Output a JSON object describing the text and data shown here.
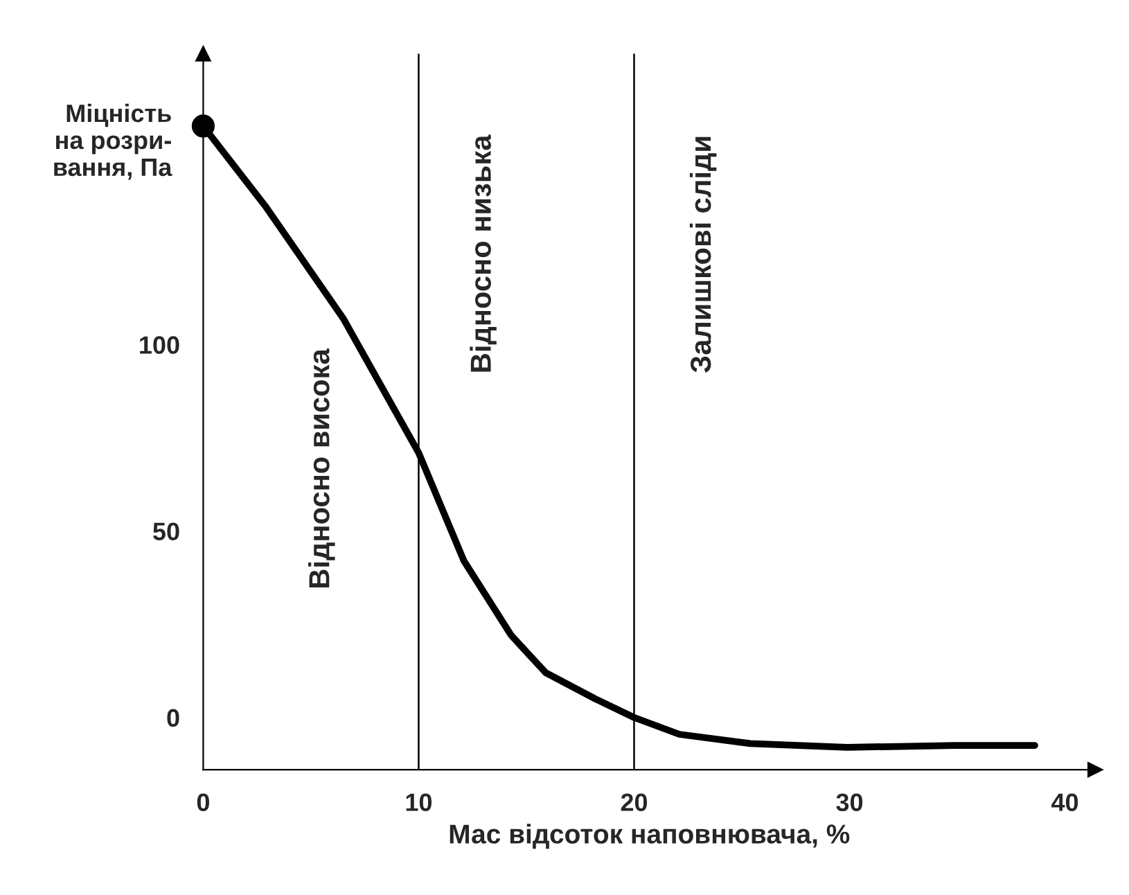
{
  "chart_data": {
    "type": "line",
    "xlabel": "Мас відсоток наповнювача, %",
    "ylabel": "Міцність\nна розри-\nвання, Па",
    "x": [
      0,
      2.9,
      6.5,
      10,
      12.1,
      14.3,
      15.9,
      18.2,
      20,
      22.1,
      25.4,
      29.9,
      34.9,
      38.6
    ],
    "series": [
      {
        "color": "#000000",
        "values": [
          158.6,
          137,
          107,
          71,
          42,
          22,
          12,
          5,
          0,
          -4.5,
          -7,
          -8,
          -7.5,
          -7.5
        ]
      },
      {
        "type": "scatter",
        "color": "#000000",
        "x": [
          0
        ],
        "values": [
          158.6
        ],
        "marker": "circle"
      }
    ],
    "xlim": [
      0,
      41.4
    ],
    "ylim": [
      -14,
      178
    ],
    "xticks": [
      0,
      10,
      20,
      30,
      40
    ],
    "yticks": [
      0,
      50,
      100
    ],
    "ref_lines": [
      {
        "axis": "x",
        "value": 10,
        "color": "#000000"
      },
      {
        "axis": "x",
        "value": 20,
        "color": "#000000"
      }
    ],
    "annotations": [
      "Відносно висока",
      "Відносно низька",
      "Залишкові сліди"
    ],
    "marker": "none",
    "line_style": "solid",
    "grid": false,
    "legend": false
  }
}
